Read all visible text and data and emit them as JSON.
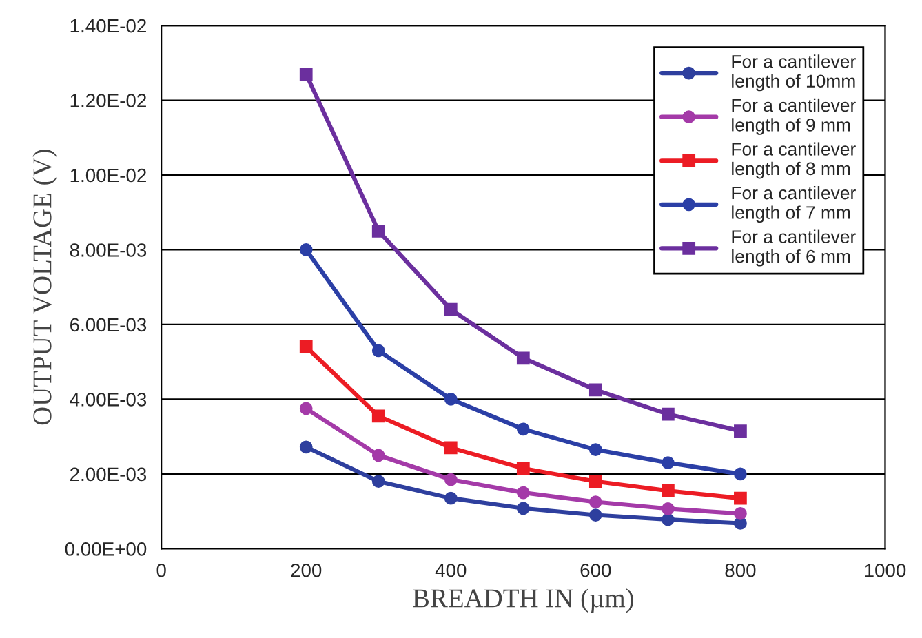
{
  "chart_data": {
    "type": "line",
    "xlabel": "BREADTH IN (µm)",
    "ylabel": "OUTPUT VOLTAGE (V)",
    "x": [
      200,
      300,
      400,
      500,
      600,
      700,
      800
    ],
    "series": [
      {
        "name": "For a cantilever\nlength of 10mm",
        "color": "#2e3f9e",
        "marker": "circle",
        "values": [
          0.00272,
          0.0018,
          0.00135,
          0.00108,
          0.0009,
          0.00078,
          0.00068
        ]
      },
      {
        "name": "For a cantilever\nlength of 9 mm",
        "color": "#a43aa8",
        "marker": "circle",
        "values": [
          0.00375,
          0.0025,
          0.00185,
          0.0015,
          0.00125,
          0.00107,
          0.00094
        ]
      },
      {
        "name": "For a cantilever\nlength of 8 mm",
        "color": "#ec1c24",
        "marker": "square",
        "values": [
          0.0054,
          0.00355,
          0.0027,
          0.00215,
          0.0018,
          0.00155,
          0.00135
        ]
      },
      {
        "name": "For a cantilever\nlength of 7 mm",
        "color": "#2b3fa6",
        "marker": "circle",
        "values": [
          0.008,
          0.0053,
          0.004,
          0.0032,
          0.00265,
          0.0023,
          0.002
        ]
      },
      {
        "name": "For a cantilever\nlength of 6 mm",
        "color": "#6b2f9e",
        "marker": "square",
        "values": [
          0.0127,
          0.0085,
          0.0064,
          0.0051,
          0.00425,
          0.0036,
          0.00315
        ]
      }
    ],
    "xlim": [
      0,
      1000
    ],
    "xticks": [
      0,
      200,
      400,
      600,
      800,
      1000
    ],
    "ylim": [
      0,
      0.014
    ],
    "yticks": [
      {
        "value": 0,
        "label": "0.00E+00"
      },
      {
        "value": 0.002,
        "label": "2.00E-03"
      },
      {
        "value": 0.004,
        "label": "4.00E-03"
      },
      {
        "value": 0.006,
        "label": "6.00E-03"
      },
      {
        "value": 0.008,
        "label": "8.00E-03"
      },
      {
        "value": 0.01,
        "label": "1.00E-02"
      },
      {
        "value": 0.012,
        "label": "1.20E-02"
      },
      {
        "value": 0.014,
        "label": "1.40E-02"
      }
    ],
    "grid": "y",
    "legend": "top right",
    "line_style": "solid"
  }
}
